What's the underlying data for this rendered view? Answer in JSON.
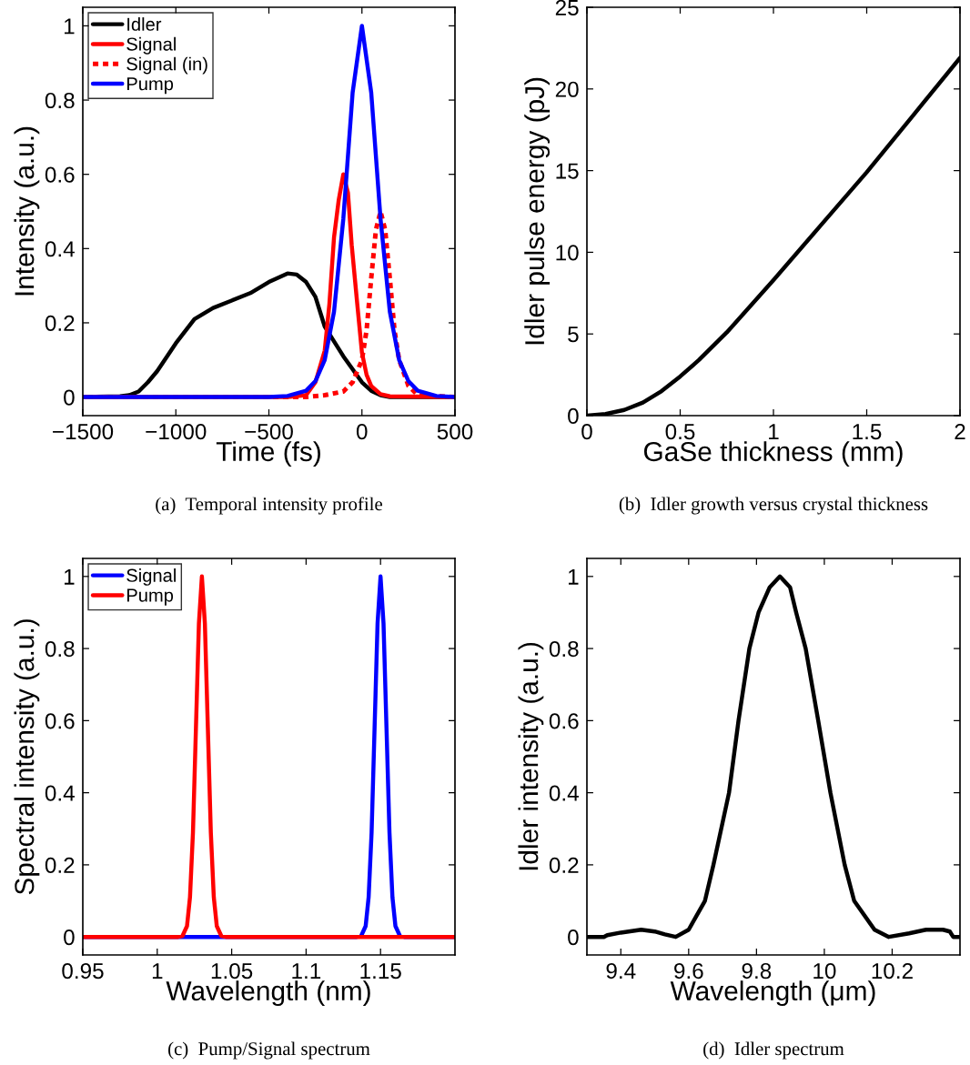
{
  "chart_data": [
    {
      "type": "line",
      "xlabel": "Time (fs)",
      "ylabel": "Intensity (a.u.)",
      "annotations": [
        "(a)  Temporal intensity profile"
      ],
      "xlim": [
        -1500,
        500
      ],
      "ylim": [
        -0.05,
        1.05
      ],
      "xticks": [
        {
          "value": -1500,
          "label": "−1500"
        },
        {
          "value": -1000,
          "label": "−1000"
        },
        {
          "value": -500,
          "label": "−500"
        },
        0,
        500
      ],
      "yticks": [
        0,
        0.2,
        0.4,
        0.6,
        0.8,
        1
      ],
      "grid": false,
      "legend": "top left",
      "series": [
        {
          "name": "Idler",
          "color": "#000000",
          "line_style": "solid",
          "x": [
            -1500,
            -1300,
            -1250,
            -1200,
            -1150,
            -1100,
            -1000,
            -900,
            -800,
            -700,
            -600,
            -500,
            -400,
            -350,
            -300,
            -250,
            -200,
            -150,
            -100,
            -50,
            0,
            50,
            100,
            150,
            500
          ],
          "values": [
            0,
            0.002,
            0.005,
            0.015,
            0.04,
            0.07,
            0.145,
            0.21,
            0.24,
            0.26,
            0.28,
            0.31,
            0.333,
            0.33,
            0.31,
            0.27,
            0.19,
            0.15,
            0.11,
            0.075,
            0.04,
            0.017,
            0.005,
            0,
            0
          ]
        },
        {
          "name": "Signal",
          "color": "#ff0000",
          "line_style": "solid",
          "x": [
            -1500,
            -400,
            -300,
            -250,
            -200,
            -175,
            -150,
            -125,
            -100,
            -75,
            -55,
            -25,
            0,
            25,
            50,
            100,
            150,
            500
          ],
          "values": [
            0,
            0,
            0.005,
            0.04,
            0.125,
            0.25,
            0.43,
            0.53,
            0.6,
            0.55,
            0.41,
            0.25,
            0.12,
            0.06,
            0.03,
            0.008,
            0.002,
            0
          ]
        },
        {
          "name": "Signal (in)",
          "color": "#ff0000",
          "line_style": "dotted",
          "x": [
            -1500,
            -300,
            -200,
            -100,
            -50,
            0,
            25,
            50,
            75,
            100,
            125,
            150,
            175,
            200,
            250,
            300,
            500
          ],
          "values": [
            0,
            0,
            0.005,
            0.015,
            0.04,
            0.1,
            0.18,
            0.32,
            0.45,
            0.5,
            0.45,
            0.32,
            0.18,
            0.1,
            0.03,
            0.005,
            0
          ]
        },
        {
          "name": "Pump",
          "color": "#0000ff",
          "line_style": "solid",
          "x": [
            -1500,
            -500,
            -400,
            -300,
            -250,
            -200,
            -150,
            -100,
            -50,
            0,
            50,
            100,
            150,
            200,
            250,
            300,
            400,
            500
          ],
          "values": [
            0,
            0,
            0.003,
            0.017,
            0.043,
            0.1,
            0.23,
            0.48,
            0.82,
            1,
            0.82,
            0.48,
            0.23,
            0.1,
            0.043,
            0.017,
            0.003,
            0
          ]
        }
      ]
    },
    {
      "type": "line",
      "xlabel": "GaSe thickness (mm)",
      "ylabel": "Idler pulse energy (pJ)",
      "annotations": [
        "(b)  Idler growth versus crystal thickness"
      ],
      "xlim": [
        0,
        2
      ],
      "ylim": [
        0,
        25
      ],
      "xticks": [
        0,
        0.5,
        1,
        1.5,
        2
      ],
      "yticks": [
        0,
        5,
        10,
        15,
        20,
        25
      ],
      "grid": false,
      "legend": false,
      "series": [
        {
          "color": "#000000",
          "line_style": "solid",
          "x": [
            0,
            0.1,
            0.2,
            0.3,
            0.4,
            0.5,
            0.6,
            0.75,
            1,
            1.25,
            1.5,
            1.75,
            2
          ],
          "values": [
            0,
            0.1,
            0.35,
            0.8,
            1.5,
            2.4,
            3.4,
            5.1,
            8.3,
            11.6,
            14.9,
            18.4,
            21.9
          ]
        }
      ]
    },
    {
      "type": "line",
      "xlabel": "Wavelength (nm)",
      "ylabel": "Spectral intensity (a.u.)",
      "annotations": [
        "(c)  Pump/Signal spectrum"
      ],
      "xlim": [
        0.95,
        1.2
      ],
      "ylim": [
        -0.05,
        1.05
      ],
      "xticks": [
        0.95,
        1,
        1.05,
        1.1,
        1.15
      ],
      "yticks": [
        0,
        0.2,
        0.4,
        0.6,
        0.8,
        1
      ],
      "grid": false,
      "legend": "top left",
      "series": [
        {
          "name": "Signal",
          "color": "#0000ff",
          "line_style": "solid",
          "x": [
            0.95,
            1.134,
            1.137,
            1.14,
            1.142,
            1.144,
            1.146,
            1.148,
            1.15,
            1.152,
            1.154,
            1.156,
            1.158,
            1.16,
            1.163,
            1.166,
            1.2
          ],
          "values": [
            0,
            0,
            0.003,
            0.03,
            0.11,
            0.29,
            0.58,
            0.87,
            1,
            0.87,
            0.58,
            0.29,
            0.11,
            0.03,
            0.003,
            0,
            0
          ]
        },
        {
          "name": "Pump",
          "color": "#ff0000",
          "line_style": "solid",
          "x": [
            0.95,
            1.014,
            1.017,
            1.02,
            1.022,
            1.024,
            1.026,
            1.028,
            1.03,
            1.032,
            1.034,
            1.036,
            1.038,
            1.04,
            1.043,
            1.046,
            1.2
          ],
          "values": [
            0,
            0,
            0.003,
            0.03,
            0.11,
            0.29,
            0.58,
            0.87,
            1,
            0.87,
            0.58,
            0.29,
            0.11,
            0.03,
            0.003,
            0,
            0
          ]
        }
      ]
    },
    {
      "type": "line",
      "xlabel": "Wavelength (μm)",
      "ylabel": "Idler intensity (a.u.)",
      "annotations": [
        "(d)  Idler spectrum"
      ],
      "xlim": [
        9.3,
        10.4
      ],
      "ylim": [
        -0.05,
        1.05
      ],
      "xticks": [
        9.4,
        9.6,
        9.8,
        10,
        10.2
      ],
      "yticks": [
        0,
        0.2,
        0.4,
        0.6,
        0.8,
        1
      ],
      "grid": false,
      "legend": false,
      "series": [
        {
          "color": "#000000",
          "line_style": "solid",
          "x": [
            9.3,
            9.35,
            9.36,
            9.4,
            9.46,
            9.5,
            9.53,
            9.562,
            9.6,
            9.648,
            9.673,
            9.719,
            9.747,
            9.779,
            9.806,
            9.839,
            9.869,
            9.899,
            9.917,
            9.945,
            9.982,
            10.018,
            10.06,
            10.088,
            10.148,
            10.19,
            10.25,
            10.3,
            10.35,
            10.37,
            10.38,
            10.4
          ],
          "values": [
            0,
            0,
            0.005,
            0.012,
            0.02,
            0.015,
            0.007,
            0,
            0.02,
            0.1,
            0.2,
            0.4,
            0.6,
            0.8,
            0.9,
            0.97,
            1,
            0.97,
            0.9,
            0.8,
            0.6,
            0.4,
            0.2,
            0.1,
            0.02,
            0,
            0.01,
            0.02,
            0.02,
            0.015,
            0,
            0
          ]
        }
      ]
    }
  ]
}
